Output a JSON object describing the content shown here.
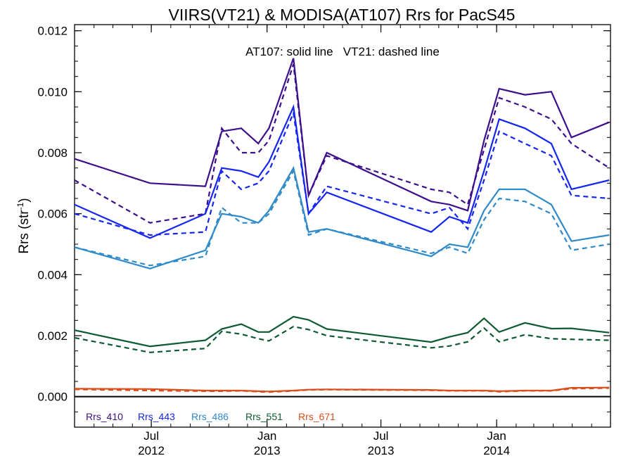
{
  "chart_data": {
    "type": "line",
    "title": "VIIRS(VT21) & MODISA(AT107)  Rrs for PacS45",
    "ylabel": "Rrs (str",
    "ylabel_sup": "-1",
    "ylabel_close": ")",
    "annotation": "AT107: solid line   VT21: dashed line",
    "xlim": [
      "2012-03-01",
      "2014-07-01"
    ],
    "ylim": [
      -0.001,
      0.0122
    ],
    "yticks": [
      0.0,
      0.002,
      0.004,
      0.006,
      0.008,
      0.01,
      0.012
    ],
    "ytick_labels": [
      "0.000",
      "0.002",
      "0.004",
      "0.006",
      "0.008",
      "0.010",
      "0.012"
    ],
    "xticks": [
      {
        "date": "2012-07-01",
        "top": "Jul",
        "bottom": "2012"
      },
      {
        "date": "2013-01-01",
        "top": "Jan",
        "bottom": "2013"
      },
      {
        "date": "2013-07-01",
        "top": "Jul",
        "bottom": "2013"
      },
      {
        "date": "2014-01-01",
        "top": "Jan",
        "bottom": "2014"
      }
    ],
    "zero_line": 0.0,
    "solid_dates": [
      "2012-03-01",
      "2012-06-29",
      "2012-09-25",
      "2012-10-21",
      "2012-11-21",
      "2012-12-18",
      "2013-01-04",
      "2013-02-12",
      "2013-03-08",
      "2013-04-06",
      "2013-09-19",
      "2013-10-18",
      "2013-11-16",
      "2013-12-12",
      "2014-01-05",
      "2014-02-15",
      "2014-03-29",
      "2014-04-30",
      "2014-06-29"
    ],
    "dashed_dates": [
      "2012-03-01",
      "2012-06-29",
      "2012-09-25",
      "2012-10-21",
      "2012-11-21",
      "2012-12-18",
      "2013-01-04",
      "2013-02-12",
      "2013-03-08",
      "2013-04-06",
      "2013-09-19",
      "2013-10-18",
      "2013-11-16",
      "2013-12-12",
      "2014-01-05",
      "2014-02-15",
      "2014-03-29",
      "2014-04-30",
      "2014-06-29"
    ],
    "series": [
      {
        "name": "Rrs_410",
        "color": "#3c0f8c",
        "solid": [
          0.0078,
          0.007,
          0.0069,
          0.0087,
          0.0088,
          0.0083,
          0.0088,
          0.0111,
          0.0066,
          0.008,
          0.0064,
          0.0063,
          0.0061,
          0.0084,
          0.0101,
          0.0099,
          0.01,
          0.0085,
          0.009
        ],
        "dashed": [
          0.0071,
          0.0057,
          0.006,
          0.0088,
          0.008,
          0.008,
          0.0084,
          0.0109,
          0.0066,
          0.0079,
          0.0068,
          0.0067,
          0.0063,
          0.0081,
          0.0098,
          0.0095,
          0.0091,
          0.0083,
          0.0075
        ]
      },
      {
        "name": "Rrs_443",
        "color": "#1426f0",
        "solid": [
          0.0063,
          0.0052,
          0.006,
          0.0075,
          0.0074,
          0.0072,
          0.0077,
          0.0095,
          0.006,
          0.0067,
          0.0054,
          0.0059,
          0.0057,
          0.0074,
          0.0091,
          0.0088,
          0.0083,
          0.0068,
          0.0071
        ],
        "dashed": [
          0.006,
          0.0053,
          0.0054,
          0.0074,
          0.0068,
          0.007,
          0.0074,
          0.0093,
          0.006,
          0.0069,
          0.006,
          0.0062,
          0.0055,
          0.0071,
          0.0087,
          0.0083,
          0.0079,
          0.0066,
          0.0065
        ]
      },
      {
        "name": "Rrs_486",
        "color": "#2f8ac8",
        "solid": [
          0.0049,
          0.0042,
          0.0048,
          0.006,
          0.0059,
          0.0057,
          0.0061,
          0.0075,
          0.0054,
          0.0055,
          0.0046,
          0.005,
          0.0049,
          0.0061,
          0.0068,
          0.0068,
          0.0063,
          0.0051,
          0.0053
        ],
        "dashed": [
          0.0049,
          0.0043,
          0.0046,
          0.0062,
          0.0057,
          0.0057,
          0.006,
          0.0074,
          0.0053,
          0.0055,
          0.0047,
          0.0049,
          0.0047,
          0.0058,
          0.0065,
          0.0064,
          0.006,
          0.0048,
          0.005
        ]
      },
      {
        "name": "Rrs_551",
        "color": "#0d5a32",
        "solid": [
          0.00218,
          0.00165,
          0.00185,
          0.00222,
          0.00238,
          0.00212,
          0.00212,
          0.00262,
          0.00252,
          0.00222,
          0.00179,
          0.00196,
          0.0021,
          0.00257,
          0.00212,
          0.00242,
          0.00223,
          0.00224,
          0.0021
        ],
        "dashed": [
          0.00193,
          0.00145,
          0.00158,
          0.00214,
          0.00205,
          0.0019,
          0.00183,
          0.0023,
          0.0022,
          0.002,
          0.0016,
          0.00166,
          0.0018,
          0.00225,
          0.0018,
          0.00203,
          0.0019,
          0.00188,
          0.00185
        ]
      },
      {
        "name": "Rrs_671",
        "color": "#d94e1a",
        "solid": [
          0.00026,
          0.00025,
          0.0002,
          0.0002,
          0.0002,
          0.00018,
          0.00017,
          0.0002,
          0.00023,
          0.00024,
          0.00022,
          0.0002,
          0.0002,
          0.0002,
          0.00018,
          0.0002,
          0.0002,
          0.00029,
          0.0003
        ],
        "dashed": [
          0.00024,
          0.0002,
          0.00018,
          0.00018,
          0.00019,
          0.00016,
          0.00015,
          0.00019,
          0.00022,
          0.00023,
          0.00021,
          0.00019,
          0.00019,
          0.00019,
          0.00016,
          0.00019,
          0.00019,
          0.00026,
          0.00028
        ]
      }
    ]
  }
}
